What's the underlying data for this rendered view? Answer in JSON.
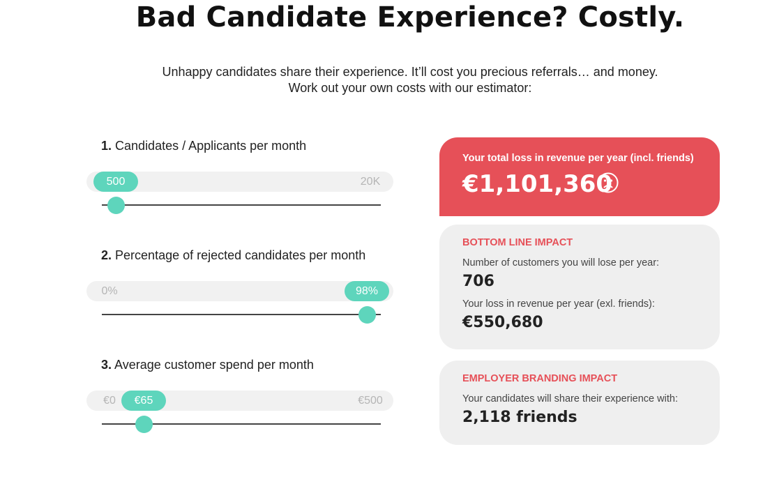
{
  "header": {
    "title": "Bad Candidate Experience? Costly.",
    "subtitle_line1": "Unhappy candidates share their experience. It’ll cost you precious referrals… and money.",
    "subtitle_line2": "Work out your own costs with our estimator:"
  },
  "sliders": [
    {
      "number": "1.",
      "label": "Candidates / Applicants per month",
      "min_label": "",
      "max_label": "20K",
      "value_label": "500",
      "level": 0.05
    },
    {
      "number": "2.",
      "label": "Percentage of rejected candidates per month",
      "min_label": "0%",
      "max_label": "",
      "value_label": "98%",
      "level": 0.95
    },
    {
      "number": "3.",
      "label": "Average customer spend per month",
      "min_label": "€0",
      "max_label": "€500",
      "value_label": "€65",
      "level": 0.15
    }
  ],
  "results": {
    "total": {
      "label": "Your total loss in revenue per year (incl. friends)",
      "amount": "€1,101,360",
      "icon": "sad-face-icon"
    },
    "bottom_line": {
      "heading": "BOTTOM LINE IMPACT",
      "customers_label": "Number of customers you will lose per year:",
      "customers_value": "706",
      "revenue_label": "Your loss in revenue per year (exl. friends):",
      "revenue_value": "€550,680"
    },
    "branding": {
      "heading": "EMPLOYER BRANDING IMPACT",
      "share_label": "Your candidates will share their experience with:",
      "share_value": "2,118 friends"
    }
  },
  "colors": {
    "accent": "#5ed5bc",
    "loss": "#e65058",
    "card_bg": "#efefef"
  }
}
